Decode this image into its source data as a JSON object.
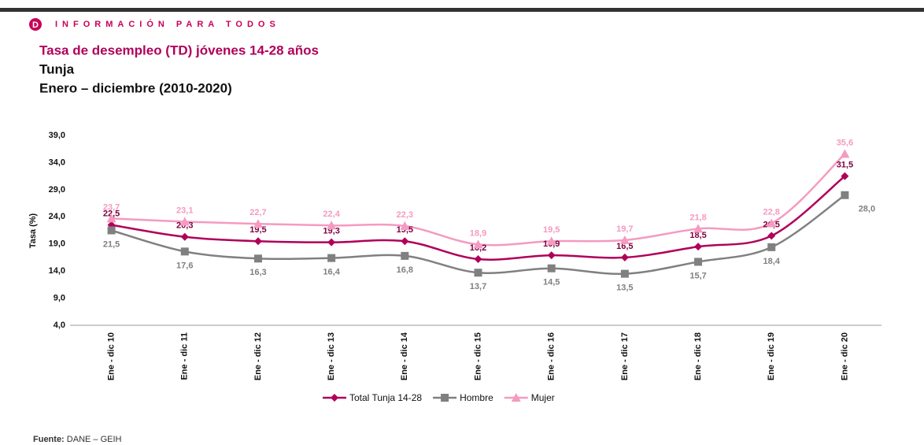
{
  "header": {
    "logo": "D",
    "tagline": "INFORMACIÓN PARA TODOS"
  },
  "chart_data": {
    "type": "line",
    "title": "Tasa de desempleo (TD) jóvenes 14-28 años",
    "subtitle": [
      "Tunja",
      "Enero – diciembre (2010-2020)"
    ],
    "y_label": "Tasa (%)",
    "categories": [
      "Ene - dic 10",
      "Ene - dic 11",
      "Ene - dic 12",
      "Ene - dic 13",
      "Ene - dic 14",
      "Ene - dic 15",
      "Ene - dic 16",
      "Ene - dic 17",
      "Ene - dic 18",
      "Ene - dic 19",
      "Ene - dic 20"
    ],
    "series": [
      {
        "name": "Total Tunja 14-28",
        "color": "#b0005a",
        "marker": "diamond",
        "label_position": "above",
        "values": [
          22.5,
          20.3,
          19.5,
          19.3,
          19.5,
          16.2,
          16.9,
          16.5,
          18.5,
          20.5,
          31.5
        ],
        "value_labels": [
          "22,5",
          "20,3",
          "19,5",
          "19,3",
          "19,5",
          "16,2",
          "16,9",
          "16,5",
          "18,5",
          "20,5",
          "31,5"
        ]
      },
      {
        "name": "Hombre",
        "color": "#808080",
        "marker": "square",
        "label_position": "below",
        "values": [
          21.5,
          17.6,
          16.3,
          16.4,
          16.8,
          13.7,
          14.5,
          13.5,
          15.7,
          18.4,
          28.0
        ],
        "value_labels": [
          "21,5",
          "17,6",
          "16,3",
          "16,4",
          "16,8",
          "13,7",
          "14,5",
          "13,5",
          "15,7",
          "18,4",
          "28,0"
        ]
      },
      {
        "name": "Mujer",
        "color": "#f59ac0",
        "marker": "triangle",
        "label_position": "above",
        "values": [
          23.7,
          23.1,
          22.7,
          22.4,
          22.3,
          18.9,
          19.5,
          19.7,
          21.8,
          22.8,
          35.6
        ],
        "value_labels": [
          "23,7",
          "23,1",
          "22,7",
          "22,4",
          "22,3",
          "18,9",
          "19,5",
          "19,7",
          "21,8",
          "22,8",
          "35,6"
        ]
      }
    ],
    "ylim": [
      4,
      39
    ],
    "yticks": [
      {
        "value": 4,
        "label": "4,0"
      },
      {
        "value": 9,
        "label": "9,0"
      },
      {
        "value": 14,
        "label": "14,0"
      },
      {
        "value": 19,
        "label": "19,0"
      },
      {
        "value": 24,
        "label": "24,0"
      },
      {
        "value": 29,
        "label": "29,0"
      },
      {
        "value": 34,
        "label": "34,0"
      },
      {
        "value": 39,
        "label": "39,0"
      }
    ],
    "legend": "bottom"
  },
  "footer": {
    "source_label": "Fuente:",
    "source": "DANE – GEIH"
  }
}
